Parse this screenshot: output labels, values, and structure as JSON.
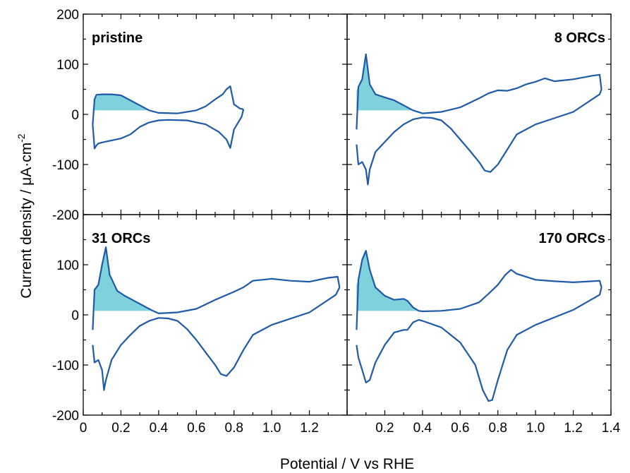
{
  "chart_data": {
    "type": "line",
    "xlabel": "Potential / V vs RHE",
    "ylabel": "Current density / μA·cm",
    "ylabel_sup": "-2",
    "xlim": [
      0,
      1.4
    ],
    "ylim": [
      -200,
      200
    ],
    "x_ticks": [
      "0",
      "0.2",
      "0.4",
      "0.6",
      "0.8",
      "1.0",
      "1.2",
      "1.4"
    ],
    "y_ticks": [
      "200",
      "100",
      "0",
      "-100",
      "-200"
    ],
    "y_ticks_lower": [
      "100",
      "0",
      "-100",
      "-200"
    ],
    "colors": {
      "curve": "#1e5aa8",
      "shade": "#7fd1dc"
    },
    "panels": [
      {
        "label": "pristine",
        "label_position": "top-left",
        "shade": {
          "baseline": 8,
          "x": [
            0.06,
            0.08,
            0.1,
            0.15,
            0.2,
            0.25,
            0.3,
            0.35
          ],
          "y": [
            30,
            39,
            40,
            40,
            38,
            28,
            18,
            8
          ]
        },
        "anodic": {
          "x": [
            0.05,
            0.06,
            0.07,
            0.1,
            0.15,
            0.2,
            0.25,
            0.3,
            0.35,
            0.4,
            0.5,
            0.6,
            0.65,
            0.7,
            0.74,
            0.76,
            0.78,
            0.8,
            0.83,
            0.85
          ],
          "y": [
            -20,
            30,
            39,
            40,
            40,
            38,
            28,
            18,
            8,
            3,
            2,
            8,
            16,
            30,
            40,
            50,
            56,
            20,
            12,
            10
          ]
        },
        "cathodic": {
          "x": [
            0.85,
            0.84,
            0.8,
            0.78,
            0.76,
            0.72,
            0.65,
            0.55,
            0.45,
            0.4,
            0.35,
            0.3,
            0.25,
            0.2,
            0.15,
            0.1,
            0.08,
            0.07,
            0.06,
            0.05
          ],
          "y": [
            10,
            -5,
            -30,
            -67,
            -50,
            -35,
            -20,
            -12,
            -11,
            -12,
            -16,
            -25,
            -40,
            -48,
            -52,
            -56,
            -58,
            -62,
            -68,
            -20
          ]
        }
      },
      {
        "label": "8 ORCs",
        "label_position": "top-right",
        "shade": {
          "baseline": 8,
          "x": [
            0.05,
            0.06,
            0.08,
            0.1,
            0.12,
            0.15,
            0.2,
            0.25,
            0.3,
            0.35
          ],
          "y": [
            48,
            55,
            70,
            120,
            60,
            40,
            34,
            28,
            18,
            8
          ]
        },
        "anodic": {
          "x": [
            0.05,
            0.06,
            0.08,
            0.1,
            0.12,
            0.15,
            0.2,
            0.25,
            0.3,
            0.35,
            0.4,
            0.5,
            0.6,
            0.7,
            0.75,
            0.8,
            0.85,
            0.9,
            0.95,
            1.0,
            1.05,
            1.1,
            1.2,
            1.3,
            1.34,
            1.35
          ],
          "y": [
            -30,
            55,
            70,
            120,
            60,
            40,
            34,
            28,
            18,
            8,
            2,
            5,
            14,
            32,
            42,
            48,
            47,
            52,
            60,
            65,
            72,
            66,
            70,
            77,
            79,
            50
          ]
        },
        "cathodic": {
          "x": [
            1.35,
            1.34,
            1.2,
            1.0,
            0.9,
            0.85,
            0.8,
            0.76,
            0.73,
            0.7,
            0.65,
            0.6,
            0.55,
            0.5,
            0.45,
            0.4,
            0.35,
            0.3,
            0.25,
            0.2,
            0.15,
            0.12,
            0.11,
            0.1,
            0.08,
            0.06,
            0.05
          ],
          "y": [
            50,
            40,
            5,
            -20,
            -40,
            -70,
            -100,
            -115,
            -112,
            -95,
            -72,
            -50,
            -28,
            -12,
            -7,
            -6,
            -10,
            -20,
            -35,
            -55,
            -75,
            -110,
            -140,
            -110,
            -95,
            -100,
            -60
          ]
        }
      },
      {
        "label": "31 ORCs",
        "label_position": "top-left",
        "shade": {
          "baseline": 8,
          "x": [
            0.06,
            0.08,
            0.1,
            0.12,
            0.14,
            0.18,
            0.22,
            0.26,
            0.3,
            0.34,
            0.37
          ],
          "y": [
            50,
            60,
            100,
            135,
            80,
            48,
            38,
            30,
            22,
            14,
            8
          ]
        },
        "anodic": {
          "x": [
            0.05,
            0.06,
            0.08,
            0.1,
            0.12,
            0.14,
            0.18,
            0.22,
            0.26,
            0.3,
            0.34,
            0.37,
            0.4,
            0.5,
            0.6,
            0.7,
            0.75,
            0.8,
            0.85,
            0.9,
            1.0,
            1.1,
            1.2,
            1.3,
            1.35,
            1.36
          ],
          "y": [
            -30,
            50,
            60,
            100,
            135,
            80,
            48,
            38,
            30,
            22,
            14,
            8,
            3,
            5,
            12,
            30,
            38,
            46,
            55,
            68,
            72,
            68,
            66,
            74,
            76,
            55
          ]
        },
        "cathodic": {
          "x": [
            1.36,
            1.34,
            1.2,
            1.0,
            0.9,
            0.85,
            0.8,
            0.76,
            0.73,
            0.7,
            0.65,
            0.6,
            0.55,
            0.5,
            0.45,
            0.4,
            0.35,
            0.3,
            0.25,
            0.2,
            0.15,
            0.12,
            0.11,
            0.1,
            0.08,
            0.06,
            0.05
          ],
          "y": [
            55,
            40,
            5,
            -20,
            -40,
            -70,
            -105,
            -122,
            -118,
            -100,
            -75,
            -50,
            -28,
            -12,
            -7,
            -6,
            -12,
            -22,
            -40,
            -60,
            -90,
            -130,
            -150,
            -110,
            -90,
            -95,
            -60
          ]
        }
      },
      {
        "label": "170 ORCs",
        "label_position": "top-right",
        "shade": {
          "baseline": 8,
          "x": [
            0.05,
            0.06,
            0.08,
            0.1,
            0.12,
            0.15,
            0.2,
            0.25,
            0.3,
            0.32,
            0.35,
            0.38
          ],
          "y": [
            60,
            70,
            110,
            128,
            90,
            55,
            38,
            30,
            32,
            28,
            15,
            8
          ]
        },
        "anodic": {
          "x": [
            0.05,
            0.06,
            0.08,
            0.1,
            0.12,
            0.15,
            0.2,
            0.25,
            0.3,
            0.32,
            0.35,
            0.38,
            0.4,
            0.5,
            0.6,
            0.7,
            0.75,
            0.8,
            0.84,
            0.87,
            0.9,
            1.0,
            1.1,
            1.2,
            1.3,
            1.34,
            1.35
          ],
          "y": [
            -30,
            70,
            110,
            128,
            90,
            55,
            38,
            30,
            32,
            28,
            15,
            8,
            7,
            8,
            12,
            25,
            42,
            60,
            80,
            90,
            82,
            70,
            67,
            65,
            67,
            68,
            55
          ]
        },
        "cathodic": {
          "x": [
            1.35,
            1.34,
            1.2,
            1.0,
            0.9,
            0.85,
            0.8,
            0.77,
            0.75,
            0.72,
            0.68,
            0.6,
            0.5,
            0.4,
            0.38,
            0.35,
            0.32,
            0.3,
            0.25,
            0.2,
            0.15,
            0.12,
            0.1,
            0.08,
            0.06,
            0.05
          ],
          "y": [
            55,
            40,
            10,
            -20,
            -40,
            -70,
            -130,
            -170,
            -172,
            -150,
            -100,
            -55,
            -25,
            -12,
            -10,
            -15,
            -30,
            -30,
            -35,
            -60,
            -95,
            -130,
            -135,
            -110,
            -85,
            -60
          ]
        }
      }
    ]
  }
}
